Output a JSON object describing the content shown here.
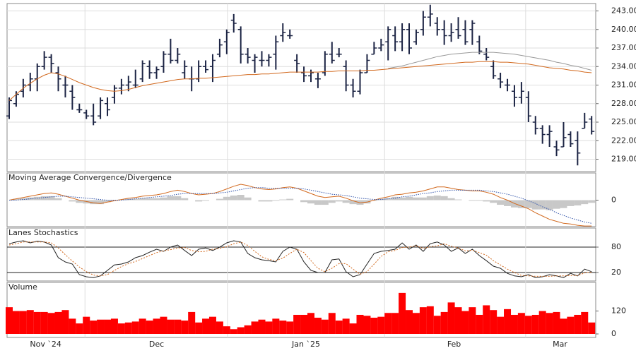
{
  "chart_data": [
    {
      "type": "ohlc",
      "color": "#1c2444",
      "open": [
        226,
        228,
        230,
        231,
        232,
        234,
        235.5,
        233,
        231,
        230,
        227,
        226.5,
        226,
        226,
        228,
        229,
        230.5,
        231,
        231,
        232,
        234,
        233,
        234,
        236,
        235,
        233,
        232,
        232,
        234,
        234,
        236,
        238,
        241.5,
        240,
        236,
        235,
        235,
        235,
        236,
        239,
        239,
        235,
        233,
        232.5,
        232,
        233,
        236,
        236,
        234,
        231,
        230,
        233,
        236,
        237,
        238,
        239,
        238,
        240,
        238,
        240,
        242,
        241,
        240,
        239,
        240,
        240,
        240,
        238,
        236,
        234,
        232,
        231,
        230,
        229,
        229,
        225,
        224,
        223,
        221,
        221,
        223,
        222,
        224,
        225.5
      ],
      "high": [
        229,
        230,
        232,
        233,
        234.5,
        236.5,
        236,
        234,
        232.5,
        231,
        228,
        227,
        228,
        229,
        229,
        231,
        232,
        232.5,
        233.5,
        235,
        235,
        234,
        236.5,
        238.5,
        237,
        235,
        234,
        235,
        235,
        236,
        238.5,
        240,
        242.5,
        240.5,
        237,
        236,
        236.5,
        236,
        239,
        241,
        240,
        236,
        234,
        233.5,
        233,
        236.5,
        238,
        237,
        235,
        232,
        233.5,
        236,
        238,
        238.5,
        240.5,
        240.5,
        241,
        241,
        240,
        243,
        244,
        242,
        241.5,
        241,
        242,
        241.5,
        241.5,
        239,
        237,
        235,
        233,
        232,
        231,
        231.5,
        230,
        226,
        224.5,
        224.5,
        222,
        225,
        223.5,
        223.5,
        226.5,
        226
      ],
      "low": [
        225.5,
        227.5,
        229,
        230,
        230,
        233.5,
        233,
        230,
        229,
        227,
        226.5,
        225.5,
        224.5,
        225.5,
        226,
        228,
        229.5,
        230,
        230.5,
        231.5,
        232,
        232,
        233,
        234.5,
        234.5,
        232,
        230,
        231.5,
        233,
        231.5,
        235.5,
        236,
        239.5,
        234.5,
        234.5,
        233,
        234,
        234,
        233.5,
        238,
        238.5,
        233,
        231.5,
        231.5,
        230.5,
        232.5,
        234.5,
        235.5,
        230,
        229,
        229.5,
        233,
        236,
        236.5,
        235,
        236.5,
        236.5,
        236,
        237.5,
        239,
        240.5,
        239,
        237.5,
        238,
        238.5,
        237.5,
        237.5,
        236,
        235,
        232,
        230.5,
        230,
        227.5,
        228,
        225,
        223,
        221.5,
        221,
        219.5,
        221,
        221,
        218,
        224,
        223
      ],
      "close": [
        228.5,
        229.5,
        231,
        232,
        234,
        235.5,
        234.5,
        232,
        231,
        229,
        227,
        226,
        225,
        228.5,
        227,
        230.5,
        231,
        231.5,
        231,
        234.5,
        233,
        233.5,
        236,
        235,
        236,
        234,
        232,
        234,
        233.5,
        235,
        237.5,
        239.5,
        241,
        236,
        235.5,
        235.5,
        235,
        235.5,
        238,
        239.5,
        239,
        234.5,
        232.5,
        233,
        232,
        236,
        235,
        236,
        231,
        230,
        233,
        235,
        237,
        237.5,
        240,
        238,
        240,
        237,
        239.5,
        242,
        242.5,
        240,
        239,
        239.5,
        239,
        238,
        241,
        236.5,
        235.5,
        232.5,
        231.5,
        231,
        229,
        230,
        226,
        224,
        223,
        223.5,
        220.5,
        222.5,
        221.5,
        220,
        225,
        223.5
      ],
      "series": [
        {
          "color": "#999999",
          "style": "line",
          "values": [
            null,
            null,
            null,
            null,
            null,
            null,
            null,
            null,
            null,
            null,
            null,
            null,
            null,
            null,
            null,
            null,
            null,
            null,
            null,
            null,
            null,
            null,
            null,
            null,
            null,
            null,
            null,
            null,
            null,
            null,
            null,
            null,
            null,
            null,
            null,
            null,
            null,
            null,
            null,
            null,
            null,
            null,
            null,
            null,
            null,
            null,
            null,
            null,
            null,
            null,
            null,
            null,
            null,
            null,
            233.7,
            233.9,
            234.1,
            234.4,
            234.7,
            235,
            235.3,
            235.6,
            235.8,
            236,
            236.1,
            236.2,
            236.3,
            236.3,
            236.3,
            236.3,
            236.2,
            236.1,
            236,
            235.8,
            235.6,
            235.4,
            235.2,
            235,
            234.7,
            234.5,
            234.2,
            234,
            233.7,
            233.4
          ]
        },
        {
          "color": "#d2691e",
          "style": "line",
          "values": [
            228.5,
            229.5,
            230.5,
            231.3,
            232,
            232.6,
            233,
            232.8,
            232.4,
            231.9,
            231.4,
            231,
            230.6,
            230.3,
            230.1,
            230,
            230.1,
            230.3,
            230.6,
            230.9,
            231.1,
            231.3,
            231.5,
            231.7,
            231.9,
            232,
            232,
            232.1,
            232.1,
            232.2,
            232.3,
            232.4,
            232.5,
            232.6,
            232.7,
            232.7,
            232.8,
            232.8,
            232.9,
            233,
            233.1,
            233.1,
            233.1,
            233.1,
            233.1,
            233.2,
            233.2,
            233.3,
            233.3,
            233.3,
            233.3,
            233.4,
            233.4,
            233.5,
            233.6,
            233.7,
            233.8,
            233.9,
            234,
            234.1,
            234.2,
            234.3,
            234.4,
            234.5,
            234.6,
            234.7,
            234.7,
            234.8,
            234.8,
            234.8,
            234.7,
            234.7,
            234.6,
            234.5,
            234.4,
            234.2,
            234,
            233.8,
            233.7,
            233.6,
            233.4,
            233.3,
            233.1,
            233
          ]
        }
      ],
      "ylim": [
        217,
        244.2
      ],
      "yticks": [
        {
          "value": 219,
          "label": "219.00"
        },
        {
          "value": 222,
          "label": "222.00"
        },
        {
          "value": 225,
          "label": "225.00"
        },
        {
          "value": 228,
          "label": "228.00"
        },
        {
          "value": 231,
          "label": "231.00"
        },
        {
          "value": 234,
          "label": "234.00"
        },
        {
          "value": 237,
          "label": "237.00"
        },
        {
          "value": 240,
          "label": "240.00"
        },
        {
          "value": 243,
          "label": "243.00"
        }
      ],
      "grid": true,
      "grid_color": "#dddddd"
    },
    {
      "type": "line",
      "title": "Moving Average Convergence/Divergence",
      "series": [
        {
          "color": "#c8c8c8",
          "style": "histogram",
          "values": [
            0,
            0.2,
            0.3,
            0.4,
            0.5,
            0.6,
            0.6,
            0.3,
            0,
            -0.2,
            -0.4,
            -0.5,
            -0.6,
            -0.6,
            -0.3,
            -0.1,
            0.1,
            0.2,
            0.2,
            0.3,
            0.3,
            0.3,
            0.4,
            0.6,
            0.6,
            0.3,
            0,
            -0.2,
            -0.1,
            0,
            0.2,
            0.5,
            0.7,
            0.8,
            0.4,
            0,
            -0.2,
            -0.2,
            -0.1,
            0.1,
            0.2,
            0,
            -0.3,
            -0.5,
            -0.7,
            -0.7,
            -0.4,
            -0.2,
            -0.4,
            -0.6,
            -0.7,
            -0.5,
            -0.1,
            0.2,
            0.3,
            0.5,
            0.4,
            0.5,
            0.4,
            0.4,
            0.6,
            0.7,
            0.6,
            0.3,
            0.1,
            0,
            -0.1,
            -0.1,
            -0.2,
            -0.4,
            -0.7,
            -0.9,
            -1.1,
            -1.2,
            -1.2,
            -1.4,
            -1.4,
            -1.5,
            -1.3,
            -1.2,
            -0.9,
            -0.8,
            -0.6,
            -0.4
          ]
        },
        {
          "color": "#d2691e",
          "style": "line",
          "values": [
            0,
            0.2,
            0.4,
            0.6,
            0.8,
            1,
            1.1,
            0.9,
            0.6,
            0.3,
            0,
            -0.2,
            -0.4,
            -0.5,
            -0.3,
            -0.1,
            0.1,
            0.3,
            0.4,
            0.6,
            0.7,
            0.8,
            1,
            1.3,
            1.5,
            1.3,
            1,
            0.8,
            0.9,
            1,
            1.3,
            1.7,
            2.1,
            2.4,
            2.2,
            1.9,
            1.7,
            1.6,
            1.7,
            1.9,
            2,
            1.8,
            1.4,
            1,
            0.6,
            0.4,
            0.5,
            0.6,
            0.3,
            -0.1,
            -0.4,
            -0.3,
            0,
            0.3,
            0.5,
            0.8,
            0.9,
            1.1,
            1.2,
            1.4,
            1.7,
            2,
            2,
            1.8,
            1.6,
            1.5,
            1.4,
            1.4,
            1.2,
            0.9,
            0.4,
            0,
            -0.5,
            -0.9,
            -1.3,
            -1.9,
            -2.4,
            -2.9,
            -3.2,
            -3.5,
            -3.6,
            -3.8,
            -3.9,
            -3.9
          ]
        },
        {
          "color": "#3355aa",
          "style": "dotted",
          "values": [
            0,
            0,
            0.1,
            0.2,
            0.3,
            0.4,
            0.5,
            0.6,
            0.6,
            0.5,
            0.4,
            0.3,
            0.2,
            0.1,
            0,
            0,
            0,
            0.1,
            0.2,
            0.3,
            0.4,
            0.5,
            0.6,
            0.7,
            0.9,
            1,
            1,
            1,
            1,
            1,
            1.1,
            1.2,
            1.4,
            1.6,
            1.8,
            1.9,
            1.9,
            1.8,
            1.8,
            1.8,
            1.8,
            1.8,
            1.7,
            1.5,
            1.3,
            1.1,
            0.9,
            0.8,
            0.7,
            0.5,
            0.3,
            0.2,
            0.1,
            0.1,
            0.2,
            0.3,
            0.5,
            0.6,
            0.8,
            1,
            1.1,
            1.3,
            1.4,
            1.5,
            1.5,
            1.5,
            1.5,
            1.5,
            1.4,
            1.3,
            1.1,
            0.9,
            0.6,
            0.3,
            -0.1,
            -0.5,
            -1,
            -1.4,
            -1.9,
            -2.3,
            -2.7,
            -3,
            -3.3,
            -3.5
          ]
        }
      ],
      "ylim": [
        -4,
        4
      ],
      "yticks": [
        0
      ],
      "grid": false
    },
    {
      "type": "line",
      "title": "Lanes Stochastics",
      "series": [
        {
          "color": "#222222",
          "style": "line",
          "values": [
            88,
            92,
            95,
            90,
            94,
            92,
            85,
            55,
            45,
            40,
            15,
            10,
            8,
            12,
            25,
            38,
            40,
            45,
            55,
            60,
            68,
            75,
            70,
            80,
            85,
            72,
            60,
            75,
            78,
            72,
            80,
            90,
            95,
            92,
            65,
            55,
            50,
            48,
            45,
            70,
            80,
            75,
            45,
            25,
            20,
            20,
            50,
            52,
            22,
            10,
            15,
            40,
            65,
            70,
            72,
            75,
            90,
            75,
            85,
            70,
            88,
            92,
            85,
            70,
            78,
            65,
            75,
            60,
            48,
            35,
            30,
            18,
            12,
            10,
            15,
            8,
            10,
            15,
            12,
            8,
            18,
            12,
            28,
            22
          ]
        },
        {
          "color": "#d2691e",
          "style": "dashed",
          "values": [
            85,
            88,
            92,
            92,
            92,
            92,
            90,
            78,
            62,
            47,
            33,
            22,
            14,
            12,
            15,
            25,
            34,
            41,
            46,
            53,
            60,
            67,
            71,
            74,
            78,
            79,
            72,
            69,
            70,
            75,
            77,
            81,
            88,
            92,
            84,
            70,
            57,
            51,
            48,
            54,
            65,
            75,
            67,
            48,
            30,
            22,
            30,
            41,
            41,
            28,
            16,
            22,
            40,
            58,
            69,
            72,
            79,
            80,
            83,
            77,
            81,
            83,
            88,
            82,
            78,
            71,
            73,
            67,
            61,
            48,
            38,
            28,
            20,
            13,
            12,
            11,
            11,
            11,
            12,
            12,
            13,
            13,
            19,
            21
          ]
        }
      ],
      "ylim": [
        0,
        125
      ],
      "yticks": [
        20,
        80
      ],
      "grid": true,
      "grid_color": "#222222"
    },
    {
      "type": "bar",
      "title": "Volume",
      "color": "#ff0000",
      "values": [
        140,
        120,
        120,
        125,
        115,
        115,
        110,
        115,
        125,
        80,
        55,
        90,
        70,
        75,
        75,
        80,
        55,
        60,
        65,
        80,
        70,
        80,
        90,
        75,
        75,
        70,
        115,
        60,
        80,
        90,
        65,
        40,
        25,
        35,
        45,
        65,
        75,
        65,
        80,
        70,
        65,
        100,
        100,
        110,
        85,
        75,
        110,
        70,
        80,
        55,
        100,
        95,
        85,
        90,
        110,
        110,
        215,
        125,
        110,
        140,
        145,
        95,
        115,
        165,
        140,
        120,
        140,
        100,
        150,
        125,
        90,
        130,
        100,
        110,
        95,
        100,
        120,
        110,
        115,
        80,
        90,
        100,
        115,
        60
      ],
      "ylim": [
        0,
        270
      ],
      "yticks": [
        0,
        120
      ],
      "grid": false,
      "xticks": [
        {
          "value": 5.2,
          "label": "Nov `24"
        },
        {
          "value": 21,
          "label": "Dec"
        },
        {
          "value": 42.3,
          "label": "Jan `25"
        },
        {
          "value": 63.4,
          "label": "Feb"
        },
        {
          "value": 78.5,
          "label": "Mar"
        }
      ],
      "xgrid": [
        10.8,
        31.1,
        53.5,
        73.6
      ]
    }
  ]
}
